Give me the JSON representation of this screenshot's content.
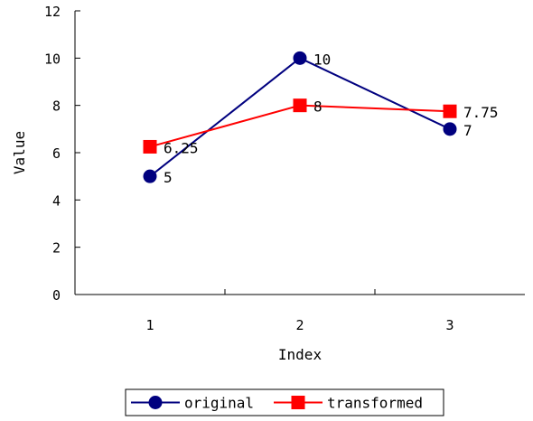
{
  "chart_data": {
    "type": "line",
    "xlabel": "Index",
    "ylabel": "Value",
    "x": [
      1,
      2,
      3
    ],
    "xlim": [
      0.5,
      3.5
    ],
    "ylim": [
      0,
      12
    ],
    "yticks": [
      0,
      2,
      4,
      6,
      8,
      10,
      12
    ],
    "xticks": [
      1,
      2,
      3
    ],
    "grid": false,
    "legend_position": "bottom",
    "series": [
      {
        "name": "original",
        "values": [
          5,
          10,
          7
        ],
        "labels": [
          "5",
          "10",
          "7"
        ],
        "color": "#00007f",
        "marker": "circle"
      },
      {
        "name": "transformed",
        "values": [
          6.25,
          8,
          7.75
        ],
        "labels": [
          "6.25",
          "8",
          "7.75"
        ],
        "color": "#ff0000",
        "marker": "square"
      }
    ]
  }
}
